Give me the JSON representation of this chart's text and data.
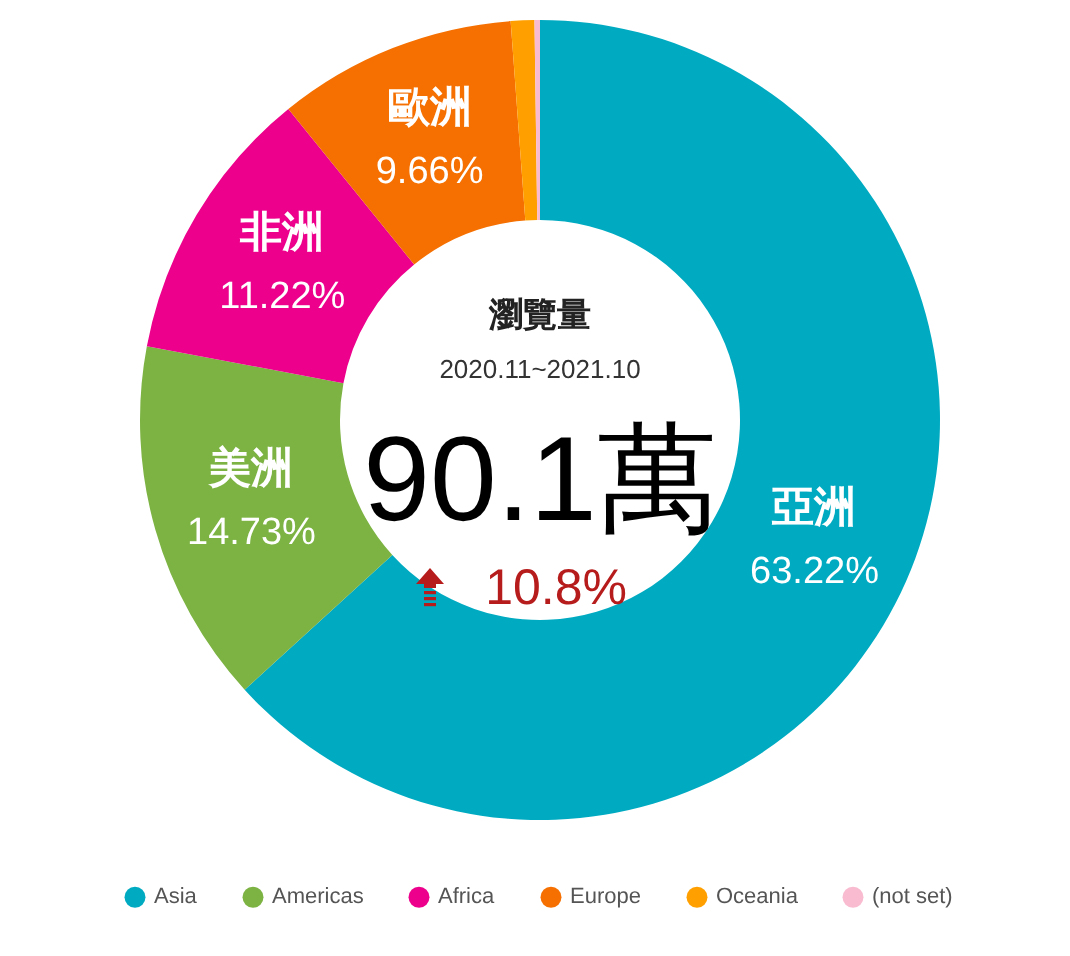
{
  "chart_data": {
    "type": "donut",
    "title": "瀏覽量",
    "subtitle": "2020.11~2021.10",
    "categories": [
      "Asia",
      "Americas",
      "Africa",
      "Europe",
      "Oceania",
      "(not set)"
    ],
    "values": [
      63.22,
      14.73,
      11.22,
      9.66,
      0.95,
      0.22
    ],
    "colors": [
      "#00abc2",
      "#7cb342",
      "#ec008c",
      "#f57000",
      "#ffa000",
      "#f8bbd0"
    ],
    "value_labels": [
      "63.22%",
      "14.73%",
      "11.22%",
      "9.66%",
      null,
      null
    ],
    "annotations": [
      {
        "text": "亞洲",
        "x": "Asia"
      },
      {
        "text": "美洲",
        "x": "Americas"
      },
      {
        "text": "非洲",
        "x": "Africa"
      },
      {
        "text": "歐洲",
        "x": "Europe"
      },
      "90.1萬",
      "10.8%"
    ],
    "legend": "bottom"
  }
}
